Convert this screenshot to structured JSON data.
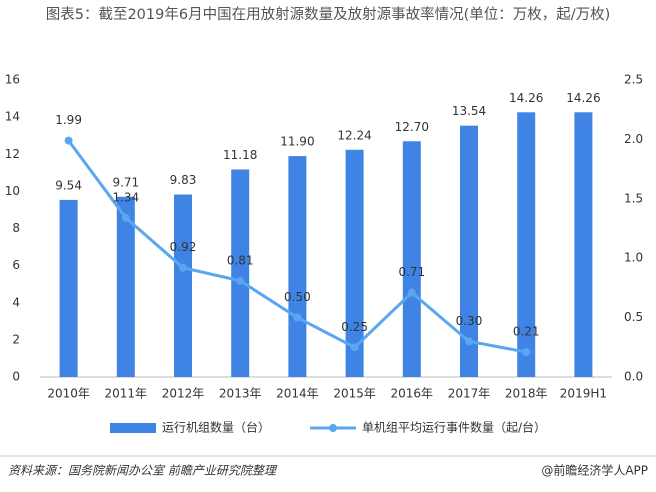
{
  "chart_data": {
    "type": "bar-line",
    "title": "图表5：截至2019年6月中国在用放射源数量及放射源事故率情况(单位：万枚，起/万枚)",
    "categories": [
      "2010年",
      "2011年",
      "2012年",
      "2013年",
      "2014年",
      "2015年",
      "2016年",
      "2017年",
      "2018年",
      "2019H1"
    ],
    "series": [
      {
        "name": "运行机组数量（台）",
        "type": "bar",
        "color": "#3f84e5",
        "values": [
          9.54,
          9.71,
          9.83,
          11.18,
          11.9,
          12.24,
          12.7,
          13.54,
          14.26,
          14.26
        ],
        "value_labels": [
          "9.54",
          "9.71",
          "9.83",
          "11.18",
          "11.90",
          "12.24",
          "12.70",
          "13.54",
          "14.26",
          "14.26"
        ]
      },
      {
        "name": "单机组平均运行事件数量（起/台）",
        "type": "line",
        "axis": "y2",
        "color": "#5aa6ef",
        "values": [
          1.99,
          1.34,
          0.92,
          0.81,
          0.5,
          0.25,
          0.71,
          0.3,
          0.21,
          null
        ],
        "value_labels": [
          "1.99",
          "1.34",
          "0.92",
          "0.81",
          "0.50",
          "0.25",
          "0.71",
          "0.30",
          "0.21",
          null
        ]
      }
    ],
    "ylim": [
      0,
      16
    ],
    "yticks": [
      0,
      2,
      4,
      6,
      8,
      10,
      12,
      14,
      16
    ],
    "y2lim": [
      0,
      2.5
    ],
    "y2ticks": [
      {
        "value": 0,
        "label": "0.0"
      },
      {
        "value": 0.5,
        "label": "0.5"
      },
      {
        "value": 1,
        "label": "1.0"
      },
      {
        "value": 1.5,
        "label": "1.5"
      },
      {
        "value": 2,
        "label": "2.0"
      },
      {
        "value": 2.5,
        "label": "2.5"
      }
    ],
    "legend": "bottom",
    "source": "资料来源：国务院新闻办公室 前瞻产业研究院整理",
    "brand": "@前瞻经济学人APP"
  }
}
